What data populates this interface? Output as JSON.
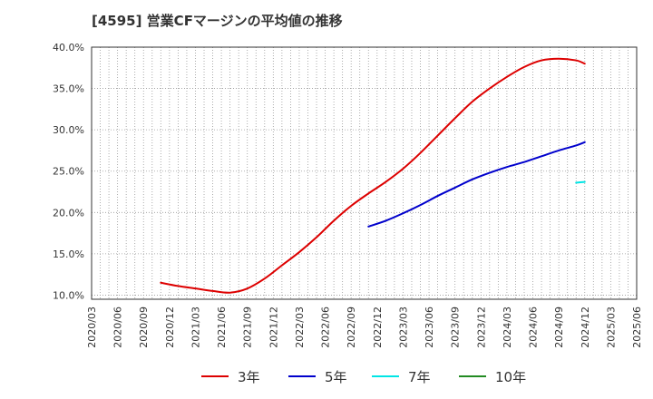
{
  "title": "[4595]  営業CFマージンの平均値の推移",
  "chart_data": {
    "type": "line",
    "title": "[4595]  営業CFマージンの平均値の推移",
    "xlabel": "",
    "ylabel": "",
    "x_ticks": [
      "2020/03",
      "2020/06",
      "2020/09",
      "2020/12",
      "2021/03",
      "2021/06",
      "2021/09",
      "2021/12",
      "2022/03",
      "2022/06",
      "2022/09",
      "2022/12",
      "2023/03",
      "2023/06",
      "2023/09",
      "2023/12",
      "2024/03",
      "2024/06",
      "2024/09",
      "2024/12",
      "2025/03",
      "2025/06"
    ],
    "y_ticks": [
      "10.0%",
      "15.0%",
      "20.0%",
      "25.0%",
      "30.0%",
      "35.0%",
      "40.0%"
    ],
    "ylim": [
      9.5,
      40.0
    ],
    "grid": true,
    "legend_position": "bottom",
    "series": [
      {
        "name": "3年",
        "color": "#dd0000",
        "points": [
          [
            "2020/11",
            11.5
          ],
          [
            "2021/01",
            11.1
          ],
          [
            "2021/03",
            10.8
          ],
          [
            "2021/05",
            10.5
          ],
          [
            "2021/07",
            10.3
          ],
          [
            "2021/09",
            10.8
          ],
          [
            "2021/11",
            12.0
          ],
          [
            "2022/01",
            13.6
          ],
          [
            "2022/03",
            15.2
          ],
          [
            "2022/05",
            17.0
          ],
          [
            "2022/07",
            19.0
          ],
          [
            "2022/09",
            20.8
          ],
          [
            "2022/11",
            22.3
          ],
          [
            "2023/01",
            23.7
          ],
          [
            "2023/03",
            25.3
          ],
          [
            "2023/05",
            27.2
          ],
          [
            "2023/07",
            29.3
          ],
          [
            "2023/09",
            31.4
          ],
          [
            "2023/11",
            33.4
          ],
          [
            "2024/01",
            35.0
          ],
          [
            "2024/03",
            36.4
          ],
          [
            "2024/05",
            37.6
          ],
          [
            "2024/07",
            38.4
          ],
          [
            "2024/09",
            38.6
          ],
          [
            "2024/11",
            38.4
          ],
          [
            "2024/12",
            38.0
          ]
        ]
      },
      {
        "name": "5年",
        "color": "#0000cc",
        "points": [
          [
            "2022/11",
            18.3
          ],
          [
            "2023/01",
            19.0
          ],
          [
            "2023/03",
            19.9
          ],
          [
            "2023/05",
            20.9
          ],
          [
            "2023/07",
            22.0
          ],
          [
            "2023/09",
            23.0
          ],
          [
            "2023/11",
            24.0
          ],
          [
            "2024/01",
            24.8
          ],
          [
            "2024/03",
            25.5
          ],
          [
            "2024/05",
            26.1
          ],
          [
            "2024/07",
            26.8
          ],
          [
            "2024/09",
            27.5
          ],
          [
            "2024/11",
            28.1
          ],
          [
            "2024/12",
            28.5
          ]
        ]
      },
      {
        "name": "7年",
        "color": "#00e5e5",
        "points": [
          [
            "2024/11",
            23.6
          ],
          [
            "2024/12",
            23.7
          ]
        ]
      },
      {
        "name": "10年",
        "color": "#228b22",
        "points": []
      }
    ]
  }
}
